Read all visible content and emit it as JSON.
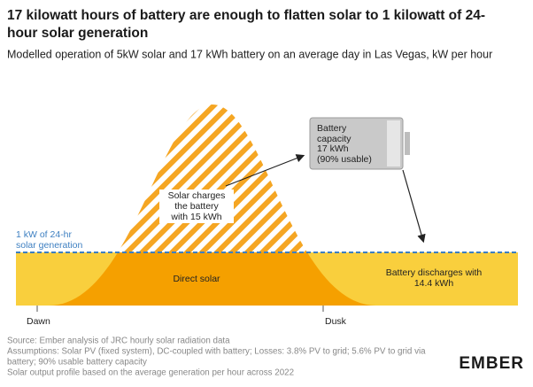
{
  "title": [
    "17 kilowatt hours of battery are enough to flatten solar to 1 kilowatt of 24-",
    "hour solar generation"
  ],
  "subtitle": "Modelled operation of 5kW solar and 17 kWh battery on an average day in Las Vegas, kW per hour",
  "annotations": {
    "battery": [
      "Battery",
      "capacity",
      "17 kWh",
      "(90% usable)"
    ],
    "charge": [
      "Solar charges",
      "the battery",
      "with 15 kWh"
    ],
    "baseline": [
      "1 kW of 24-hr",
      "solar generation"
    ],
    "direct": "Direct solar",
    "discharge": [
      "Battery discharges with",
      "14.4 kWh"
    ]
  },
  "axis_labels": [
    "Dawn",
    "Dusk"
  ],
  "notes": [
    "Source: Ember analysis of JRC hourly solar radiation data",
    "Assumptions: Solar PV (fixed system), DC-coupled with battery; Losses: 3.8% PV to grid; 5.6% PV to grid via",
    "battery; 90% usable battery capacity",
    "Solar output profile based on the average generation per hour across 2022"
  ],
  "logo": "EMBER"
}
